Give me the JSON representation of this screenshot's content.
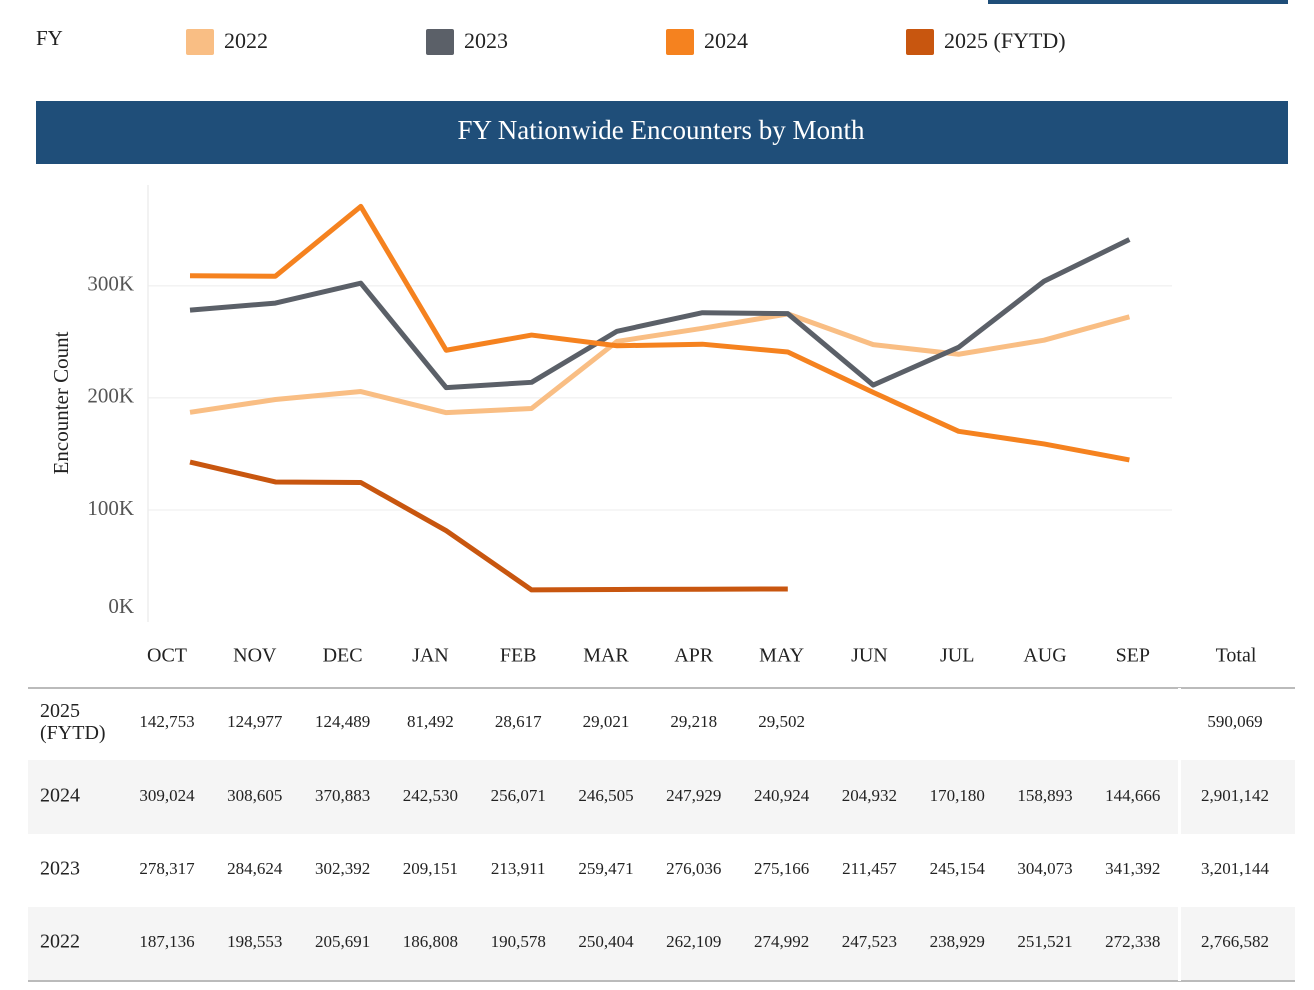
{
  "chart_data": {
    "type": "line",
    "title": "FY Nationwide Encounters by Month",
    "legend_title": "FY",
    "y_label": "Encounter Count",
    "categories": [
      "OCT",
      "NOV",
      "DEC",
      "JAN",
      "FEB",
      "MAR",
      "APR",
      "MAY",
      "JUN",
      "JUL",
      "AUG",
      "SEP"
    ],
    "ylim": [
      0,
      390000
    ],
    "yticks": [
      {
        "value": 0,
        "label": "0K"
      },
      {
        "value": 100000,
        "label": "100K"
      },
      {
        "value": 200000,
        "label": "200K"
      },
      {
        "value": 300000,
        "label": "300K"
      }
    ],
    "grid": true,
    "series": [
      {
        "name": "2022",
        "color": "#f9be84",
        "values": [
          187136,
          198553,
          205691,
          186808,
          190578,
          250404,
          262109,
          274992,
          247523,
          238929,
          251521,
          272338
        ],
        "value_labels": [
          "187,136",
          "198,553",
          "205,691",
          "186,808",
          "190,578",
          "250,404",
          "262,109",
          "274,992",
          "247,523",
          "238,929",
          "251,521",
          "272,338"
        ]
      },
      {
        "name": "2023",
        "color": "#5b6068",
        "values": [
          278317,
          284624,
          302392,
          209151,
          213911,
          259471,
          276036,
          275166,
          211457,
          245154,
          304073,
          341392
        ],
        "value_labels": [
          "278,317",
          "284,624",
          "302,392",
          "209,151",
          "213,911",
          "259,471",
          "276,036",
          "275,166",
          "211,457",
          "245,154",
          "304,073",
          "341,392"
        ]
      },
      {
        "name": "2024",
        "color": "#f5821f",
        "values": [
          309024,
          308605,
          370883,
          242530,
          256071,
          246505,
          247929,
          240924,
          204932,
          170180,
          158893,
          144666
        ],
        "value_labels": [
          "309,024",
          "308,605",
          "370,883",
          "242,530",
          "256,071",
          "246,505",
          "247,929",
          "240,924",
          "204,932",
          "170,180",
          "158,893",
          "144,666"
        ]
      },
      {
        "name": "2025 (FYTD)",
        "color": "#c8560f",
        "values": [
          142753,
          124977,
          124489,
          81492,
          28617,
          29021,
          29218,
          29502,
          null,
          null,
          null,
          null
        ],
        "value_labels": [
          "142,753",
          "124,977",
          "124,489",
          "81,492",
          "28,617",
          "29,021",
          "29,218",
          "29,502",
          null,
          null,
          null,
          null
        ]
      }
    ]
  },
  "table": {
    "total_header": "Total",
    "totals": [
      "590,069",
      "2,901,142",
      "3,201,144",
      "2,766,582"
    ]
  }
}
